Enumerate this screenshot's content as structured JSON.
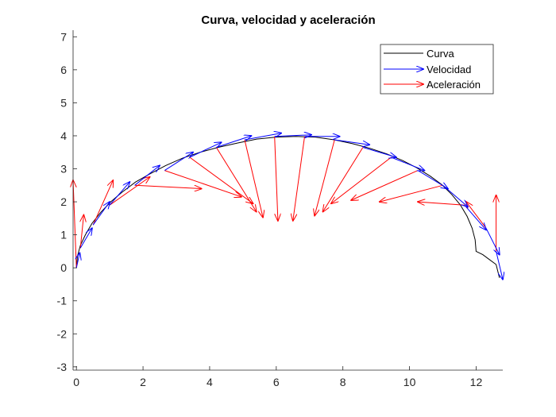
{
  "chart_data": {
    "type": "quiver",
    "title": "Curva, velocidad y aceleración",
    "xlabel": "",
    "ylabel": "",
    "xlim": [
      -0.1,
      12.8
    ],
    "ylim": [
      -3.1,
      7.2
    ],
    "xticks": [
      0,
      2,
      4,
      6,
      8,
      10,
      12
    ],
    "yticks": [
      -3,
      -2,
      -1,
      0,
      1,
      2,
      3,
      4,
      5,
      6,
      7
    ],
    "grid": false,
    "legend_position": "top-right",
    "legend": [
      "Curva",
      "Velocidad",
      "Aceleración"
    ],
    "colors": {
      "curve": "#000000",
      "velocity": "#0000ff",
      "acceleration": "#ff0000",
      "axis": "#262626"
    },
    "curve": {
      "name": "Curva",
      "x": [
        0.0,
        0.03,
        0.12,
        0.27,
        0.47,
        0.73,
        1.03,
        1.38,
        1.78,
        2.21,
        2.68,
        3.18,
        3.71,
        4.26,
        4.83,
        5.41,
        6.0,
        6.59,
        7.17,
        7.74,
        8.29,
        8.82,
        9.32,
        9.79,
        10.22,
        10.62,
        10.97,
        11.27,
        11.53,
        11.73,
        11.88,
        11.97,
        12.0,
        12.2,
        12.4,
        12.6,
        12.7
      ],
      "y": [
        0.0,
        0.35,
        0.68,
        1.0,
        1.35,
        1.68,
        2.0,
        2.3,
        2.6,
        2.85,
        3.1,
        3.32,
        3.5,
        3.65,
        3.78,
        3.9,
        3.96,
        3.98,
        3.96,
        3.88,
        3.76,
        3.62,
        3.45,
        3.25,
        3.03,
        2.78,
        2.52,
        2.22,
        1.9,
        1.56,
        1.2,
        0.85,
        0.5,
        0.4,
        0.25,
        0.1,
        -0.3
      ]
    },
    "velocity": {
      "name": "Velocidad",
      "x": [
        0.0,
        0.12,
        0.5,
        1.0,
        1.75,
        2.65,
        3.4,
        4.2,
        5.05,
        5.95,
        6.85,
        7.75,
        8.6,
        9.45,
        10.25,
        11.0,
        11.65,
        12.3,
        12.6
      ],
      "y": [
        0.0,
        0.6,
        1.3,
        1.9,
        2.5,
        2.95,
        3.35,
        3.65,
        3.88,
        3.98,
        3.98,
        3.88,
        3.65,
        3.35,
        2.95,
        2.5,
        1.9,
        1.2,
        0.5
      ],
      "u": [
        0.1,
        0.35,
        0.5,
        0.6,
        0.75,
        0.85,
        0.95,
        1.05,
        1.1,
        1.1,
        1.05,
        1.05,
        1.0,
        1.0,
        0.9,
        0.75,
        0.65,
        0.4,
        0.2
      ],
      "v": [
        0.45,
        0.6,
        0.7,
        0.7,
        0.6,
        0.55,
        0.45,
        0.35,
        0.2,
        0.05,
        0.0,
        -0.15,
        -0.3,
        -0.4,
        -0.55,
        -0.65,
        -0.75,
        -0.8,
        -0.85
      ]
    },
    "acceleration": {
      "name": "Aceleración",
      "x": [
        0.0,
        0.12,
        0.5,
        1.0,
        1.75,
        2.65,
        3.4,
        4.2,
        5.05,
        5.95,
        6.85,
        7.75,
        8.6,
        9.45,
        10.25,
        11.0,
        11.65,
        12.3,
        12.6
      ],
      "y": [
        0.0,
        0.6,
        1.3,
        1.9,
        2.5,
        2.95,
        3.35,
        3.65,
        3.88,
        3.98,
        3.98,
        3.88,
        3.65,
        3.35,
        2.95,
        2.5,
        1.9,
        1.2,
        0.5
      ],
      "u": [
        -0.1,
        0.1,
        0.6,
        1.2,
        2.0,
        2.3,
        1.9,
        1.2,
        0.55,
        0.1,
        -0.35,
        -0.6,
        -1.2,
        -1.8,
        -2.0,
        -1.9,
        -1.4,
        -0.6,
        0.0
      ],
      "v": [
        2.65,
        1.0,
        1.35,
        0.85,
        -0.1,
        -0.8,
        -1.4,
        -1.95,
        -2.35,
        -2.55,
        -2.55,
        -2.3,
        -1.95,
        -1.4,
        -0.9,
        -0.5,
        0.1,
        0.8,
        1.7
      ]
    }
  }
}
